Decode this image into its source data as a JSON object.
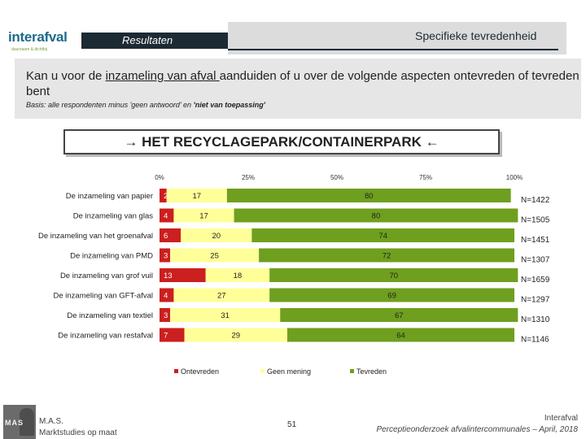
{
  "brand": {
    "logo_text": "interafval",
    "logo_tagline": "duurzaam & dichtbij"
  },
  "header": {
    "section_label": "Resultaten",
    "page_title": "Specifieke tevredenheid"
  },
  "question": {
    "text_before": "Kan u voor de ",
    "text_underlined": "inzameling van afval ",
    "text_after": "aanduiden of u over de volgende aspecten ontevreden of tevreden bent",
    "basis_plain": "Basis: alle respondenten minus 'geen antwoord' en ",
    "basis_bold": "'niet van toepassing'"
  },
  "box_title": "→ HET RECYCLAGEPARK/CONTAINERPARK ←",
  "colors": {
    "ontevreden": "#cc1f1f",
    "geen_mening": "#ffff99",
    "tevreden": "#6f9f1f",
    "frame": "#1c2a33"
  },
  "chart_data": {
    "type": "bar",
    "orientation": "horizontal",
    "stacked": true,
    "x_ticks": [
      "0%",
      "25%",
      "50%",
      "75%",
      "100%"
    ],
    "xlim": [
      0,
      100
    ],
    "categories": [
      "De inzameling van papier",
      "De inzameling van glas",
      "De inzameling van het groenafval",
      "De inzameling van PMD",
      "De inzameling van grof vuil",
      "De inzameling van GFT-afval",
      "De inzameling van textiel",
      "De inzameling van restafval"
    ],
    "series": [
      {
        "name": "Ontevreden",
        "values": [
          2,
          4,
          6,
          3,
          13,
          4,
          3,
          7
        ]
      },
      {
        "name": "Geen mening",
        "values": [
          17,
          17,
          20,
          25,
          18,
          27,
          31,
          29
        ]
      },
      {
        "name": "Tevreden",
        "values": [
          80,
          80,
          74,
          72,
          70,
          69,
          67,
          64
        ]
      }
    ],
    "n_labels": [
      "N=1422",
      "N=1505",
      "N=1451",
      "N=1307",
      "N=1659",
      "N=1297",
      "N=1310",
      "N=1146"
    ],
    "legend_position": "bottom",
    "grid": false
  },
  "footer": {
    "logo_text": "MAS",
    "left_line1": "M.A.S.",
    "left_line2": "Marktstudies op maat",
    "page_number": "51",
    "right_line1": "Interafval",
    "right_line2": "Perceptieonderzoek afvalintercommunales – April, 2018"
  }
}
